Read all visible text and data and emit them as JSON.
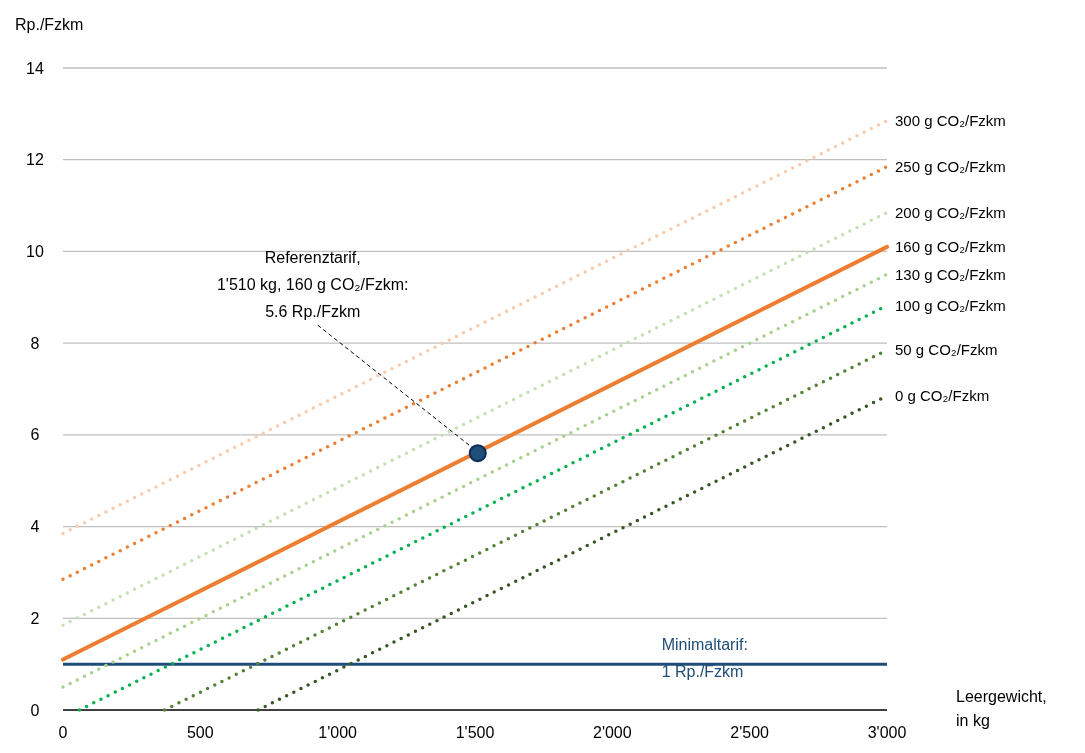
{
  "chart_data": {
    "type": "line",
    "xlabel": "Leergewicht,\nin kg",
    "ylabel": "Rp./Fzkm",
    "xlim": [
      0,
      3000
    ],
    "ylim": [
      0,
      14
    ],
    "xticks": [
      0,
      500,
      {
        "value": 1000,
        "label": "1'000"
      },
      {
        "value": 1500,
        "label": "1'500"
      },
      {
        "value": 2000,
        "label": "2'000"
      },
      {
        "value": 2500,
        "label": "2'500"
      },
      {
        "value": 3000,
        "label": "3'000"
      }
    ],
    "yticks": [
      0,
      2,
      4,
      6,
      8,
      10,
      12,
      14
    ],
    "grid": "y",
    "marker": "none",
    "series": [
      {
        "name": "300 g CO₂/Fzkm",
        "color": "#f8cbad",
        "x": [
          0,
          3000
        ],
        "values": [
          3.85,
          12.85
        ],
        "line_style": "dotted"
      },
      {
        "name": "250 g CO₂/Fzkm",
        "color": "#ed7d31",
        "x": [
          0,
          3000
        ],
        "values": [
          2.85,
          11.85
        ],
        "line_style": "dotted"
      },
      {
        "name": "200 g CO₂/Fzkm",
        "color": "#c5e0b4",
        "x": [
          0,
          3000
        ],
        "values": [
          1.85,
          10.85
        ],
        "line_style": "dotted"
      },
      {
        "name": "160 g CO₂/Fzkm",
        "color": "#ed7d31",
        "x": [
          0,
          3000
        ],
        "values": [
          1.1,
          10.1
        ],
        "line_style": "solid"
      },
      {
        "name": "130 g CO₂/Fzkm",
        "color": "#a9d18e",
        "x": [
          0,
          3000
        ],
        "values": [
          0.5,
          9.5
        ],
        "line_style": "dotted"
      },
      {
        "name": "100 g CO₂/Fzkm",
        "color": "#00b050",
        "x": [
          60,
          3000
        ],
        "values": [
          0,
          8.82
        ],
        "line_style": "dotted"
      },
      {
        "name": "50 g CO₂/Fzkm",
        "color": "#548235",
        "x": [
          370,
          3000
        ],
        "values": [
          0,
          7.85
        ],
        "line_style": "dotted"
      },
      {
        "name": "0 g CO₂/Fzkm",
        "color": "#375623",
        "x": [
          710,
          3000
        ],
        "values": [
          0,
          6.85
        ],
        "line_style": "dotted"
      },
      {
        "type": "scatter",
        "color": "#1f4e79",
        "x": [
          1510
        ],
        "values": [
          5.6
        ],
        "marker": "circle"
      }
    ],
    "ref_lines": [
      {
        "axis": "y",
        "value": 1,
        "label": "Minimaltarif:\n1 Rp./Fzkm",
        "color": "#1f4e79"
      }
    ],
    "annotations": [
      {
        "text": "Referenztarif,\n1'510 kg, 160 g CO₂/Fzkm:\n5.6 Rp./Fzkm",
        "x": 1510,
        "y": 5.6
      }
    ]
  }
}
